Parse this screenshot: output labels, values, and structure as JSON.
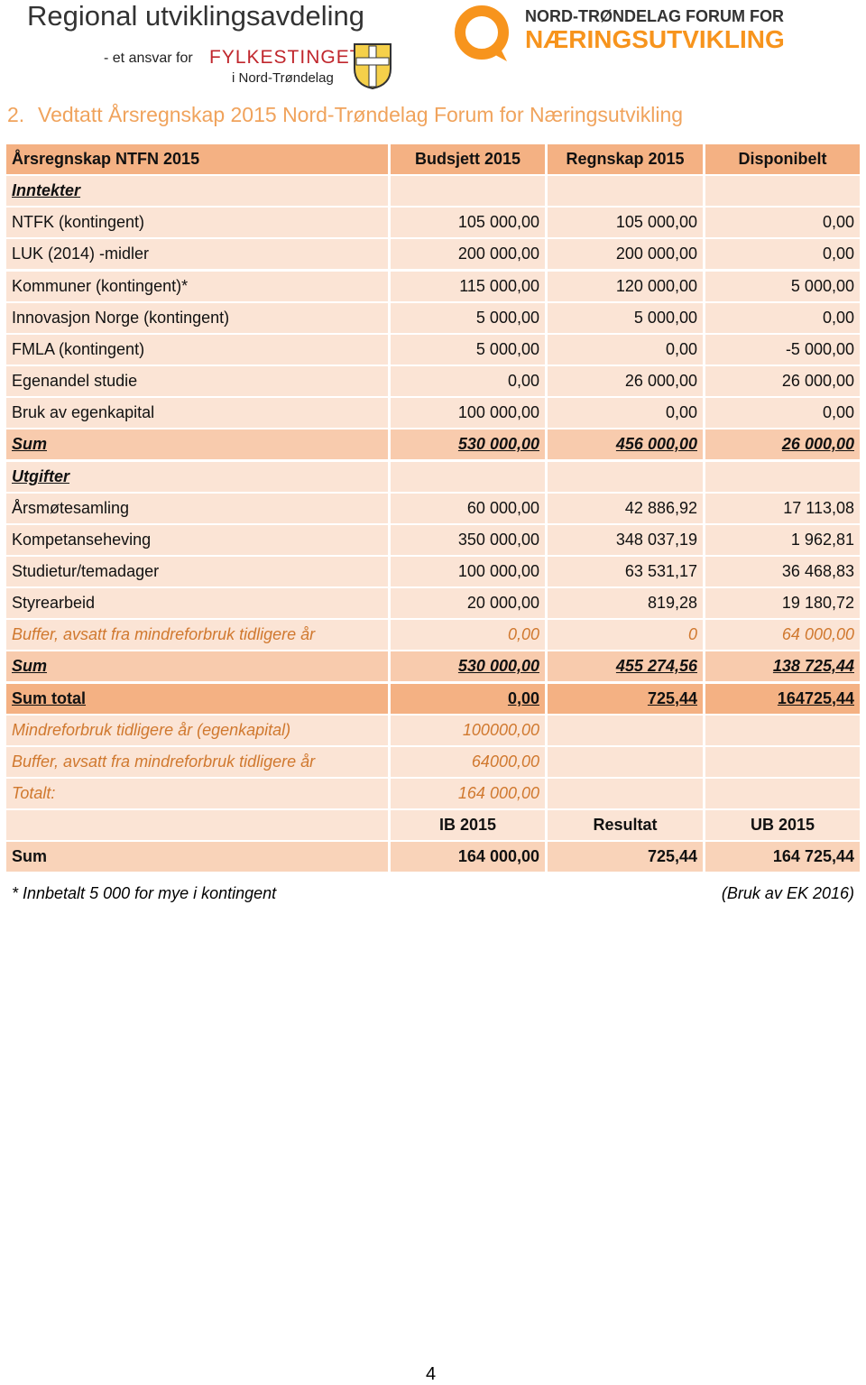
{
  "header": {
    "title": "Regional utviklingsavdeling",
    "tagline": "- et ansvar for",
    "org": "FYLKESTINGET",
    "region": "i Nord-Trøndelag",
    "forum_line1": "NORD-TRØNDELAG FORUM FOR",
    "forum_line2": "NÆRINGSUTVIKLING"
  },
  "heading": {
    "number": "2.",
    "text": "Vedtatt Årsregnskap 2015 Nord-Trøndelag Forum for Næringsutvikling"
  },
  "table": {
    "columns": [
      "Årsregnskap NTFN 2015",
      "Budsjett 2015",
      "Regnskap 2015",
      "Disponibelt"
    ],
    "rows": [
      [
        "Inntekter",
        null,
        null,
        null
      ],
      [
        "NTFK (kontingent)",
        "105 000,00",
        "105 000,00",
        "0,00"
      ],
      [
        "LUK (2014) -midler",
        "200 000,00",
        "200 000,00",
        "0,00"
      ],
      [
        "Kommuner (kontingent)*",
        "115 000,00",
        "120 000,00",
        "5 000,00"
      ],
      [
        "Innovasjon Norge (kontingent)",
        "5 000,00",
        "5 000,00",
        "0,00"
      ],
      [
        "FMLA (kontingent)",
        "5 000,00",
        "0,00",
        "-5 000,00"
      ],
      [
        "Egenandel studie",
        "0,00",
        "26 000,00",
        "26 000,00"
      ],
      [
        "Bruk av egenkapital",
        "100 000,00",
        "0,00",
        "0,00"
      ],
      [
        "Sum",
        "530 000,00",
        "456 000,00",
        "26 000,00"
      ],
      [
        "Utgifter",
        null,
        null,
        null
      ],
      [
        "Årsmøtesamling",
        "60 000,00",
        "42 886,92",
        "17 113,08"
      ],
      [
        "Kompetanseheving",
        "350 000,00",
        "348 037,19",
        "1 962,81"
      ],
      [
        "Studietur/temadager",
        "100 000,00",
        "63 531,17",
        "36 468,83"
      ],
      [
        "Styrearbeid",
        "20 000,00",
        "819,28",
        "19 180,72"
      ],
      [
        "Buffer, avsatt fra mindreforbruk tidligere år",
        "0,00",
        "0",
        "64 000,00"
      ],
      [
        "Sum",
        "530 000,00",
        "455 274,56",
        "138 725,44"
      ],
      [
        "Sum total",
        "0,00",
        "725,44",
        "164725,44"
      ],
      [
        "Mindreforbruk tidligere år (egenkapital)",
        "100000,00",
        null,
        null
      ],
      [
        "Buffer, avsatt fra mindreforbruk tidligere år",
        "64000,00",
        null,
        null
      ],
      [
        "Totalt:",
        "164 000,00",
        null,
        null
      ],
      [
        null,
        "IB 2015",
        "Resultat",
        "UB 2015"
      ],
      [
        "Sum",
        "164 000,00",
        "725,44",
        "164 725,44"
      ]
    ]
  },
  "footer": {
    "note_left": "* Innbetalt 5 000 for mye i kontingent",
    "note_right": "(Bruk av EK 2016)",
    "page_number": "4"
  }
}
